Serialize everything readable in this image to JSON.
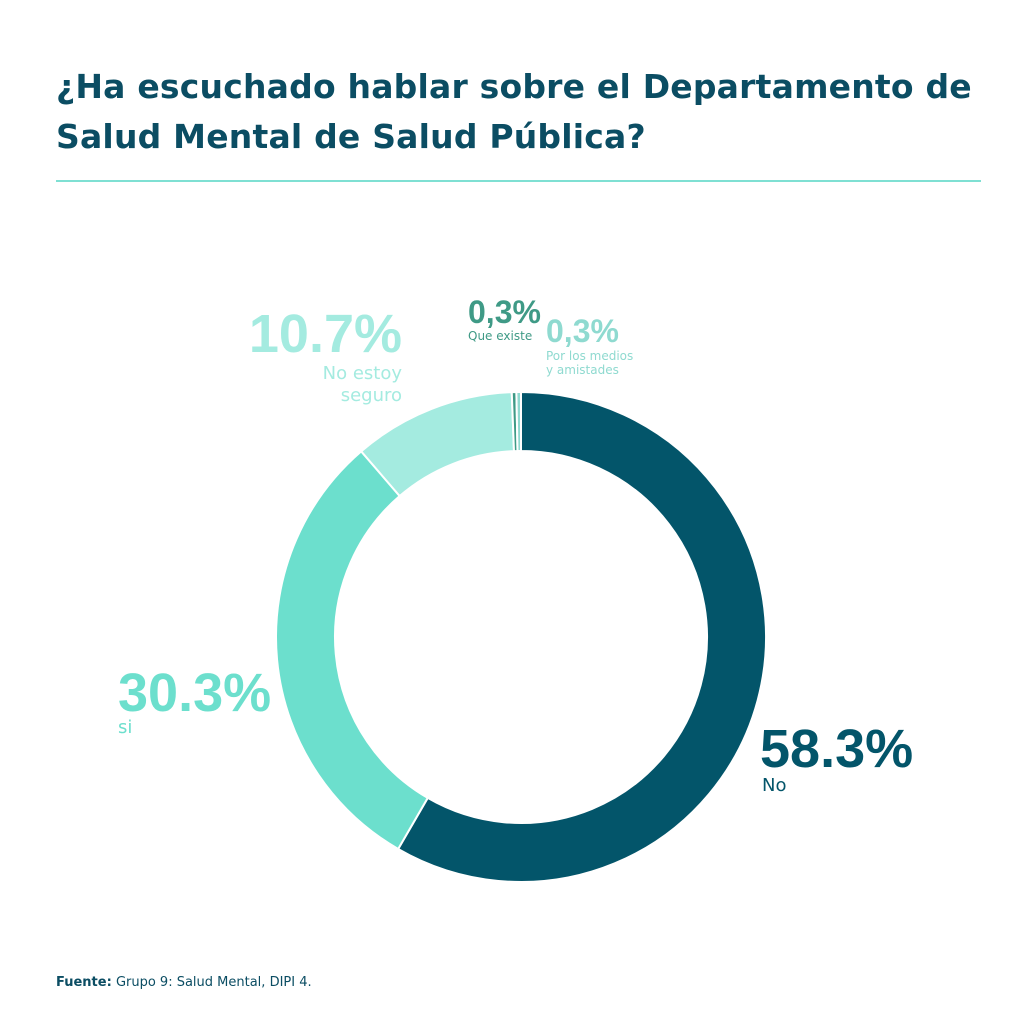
{
  "title": "¿Ha escuchado hablar sobre el Departamento de Salud Mental de Salud Pública?",
  "source": {
    "label": "Fuente:",
    "text": "Grupo 9: Salud Mental, DIPI 4."
  },
  "colors": {
    "no": "#03556a",
    "si": "#6cdfcd",
    "no_estoy_seguro": "#a4ebe0",
    "que_existe": "#3f9a86",
    "por_los_medios": "#8fdad0",
    "title": "#0b4d63",
    "rule": "#7fe0d3"
  },
  "chart_data": {
    "type": "pie",
    "title": "¿Ha escuchado hablar sobre el Departamento de Salud Mental de Salud Pública?",
    "donut": true,
    "slices": [
      {
        "label": "No",
        "value": 58.3,
        "value_label": "58.3%",
        "color": "#03556a"
      },
      {
        "label": "si",
        "value": 30.3,
        "value_label": "30.3%",
        "color": "#6cdfcd"
      },
      {
        "label": "No estoy seguro",
        "label_lines": [
          "No estoy",
          "seguro"
        ],
        "value": 10.7,
        "value_label": "10.7%",
        "color": "#a4ebe0"
      },
      {
        "label": "Que existe",
        "label_lines": [
          "Que existe"
        ],
        "value": 0.3,
        "value_label": "0,3%",
        "color": "#3f9a86"
      },
      {
        "label": "Por los medios y amistades",
        "label_lines": [
          "Por los medios",
          "y amistades"
        ],
        "value": 0.3,
        "value_label": "0,3%",
        "color": "#8fdad0"
      }
    ]
  }
}
